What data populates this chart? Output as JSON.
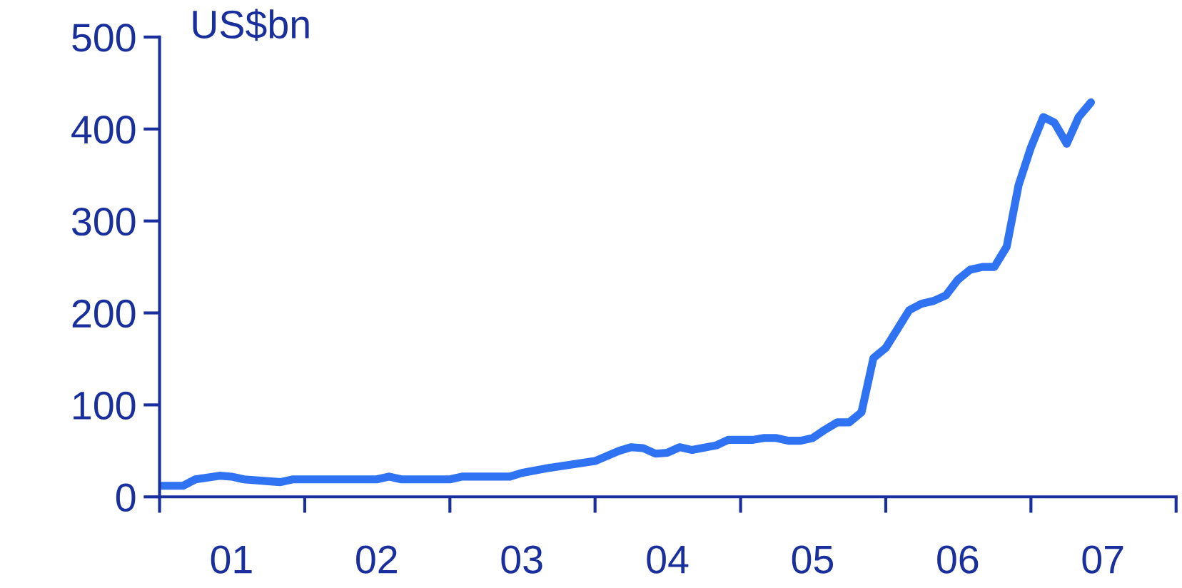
{
  "chart_data": {
    "type": "line",
    "ylabel": "US$bn",
    "xlim": [
      "2001-01",
      "2008-01"
    ],
    "ylim": [
      0,
      500
    ],
    "xticks": [
      {
        "value": "2001-01",
        "label": null
      },
      {
        "value": "2001-07",
        "label": "01"
      },
      {
        "value": "2002-01",
        "label": null
      },
      {
        "value": "2002-07",
        "label": "02"
      },
      {
        "value": "2003-01",
        "label": null
      },
      {
        "value": "2003-07",
        "label": "03"
      },
      {
        "value": "2004-01",
        "label": null
      },
      {
        "value": "2004-07",
        "label": "04"
      },
      {
        "value": "2005-01",
        "label": null
      },
      {
        "value": "2005-07",
        "label": "05"
      },
      {
        "value": "2006-01",
        "label": null
      },
      {
        "value": "2006-07",
        "label": "06"
      },
      {
        "value": "2007-01",
        "label": null
      },
      {
        "value": "2007-07",
        "label": "07"
      },
      {
        "value": "2008-01",
        "label": null
      }
    ],
    "yticks": [
      0,
      100,
      200,
      300,
      400,
      500
    ],
    "grid": false,
    "legend": false,
    "marker": "none",
    "line_style": "solid",
    "series": [
      {
        "color": "#2f72f2",
        "x": [
          "2001-01",
          "2001-03",
          "2001-04",
          "2001-06",
          "2001-07",
          "2001-08",
          "2001-10",
          "2001-11",
          "2001-12",
          "2002-07",
          "2002-08",
          "2002-09",
          "2003-01",
          "2003-02",
          "2003-06",
          "2003-07",
          "2003-09",
          "2003-10",
          "2004-01",
          "2004-03",
          "2004-04",
          "2004-05",
          "2004-06",
          "2004-07",
          "2004-08",
          "2004-09",
          "2004-11",
          "2004-12",
          "2005-02",
          "2005-03",
          "2005-04",
          "2005-05",
          "2005-06",
          "2005-07",
          "2005-08",
          "2005-09",
          "2005-10",
          "2005-11",
          "2005-12",
          "2006-01",
          "2006-03",
          "2006-04",
          "2006-05",
          "2006-06",
          "2006-07",
          "2006-08",
          "2006-09",
          "2006-10",
          "2006-11",
          "2006-12",
          "2007-01",
          "2007-02",
          "2007-03",
          "2007-04",
          "2007-05",
          "2007-06"
        ],
        "values": [
          12,
          12,
          19,
          23,
          22,
          19,
          17,
          16,
          19,
          19,
          22,
          19,
          19,
          22,
          22,
          26,
          31,
          33,
          39,
          50,
          54,
          53,
          47,
          48,
          54,
          51,
          56,
          62,
          62,
          64,
          64,
          61,
          61,
          64,
          73,
          81,
          81,
          92,
          151,
          162,
          203,
          210,
          213,
          219,
          236,
          247,
          250,
          250,
          272,
          339,
          380,
          413,
          407,
          384,
          413,
          429
        ]
      }
    ]
  }
}
